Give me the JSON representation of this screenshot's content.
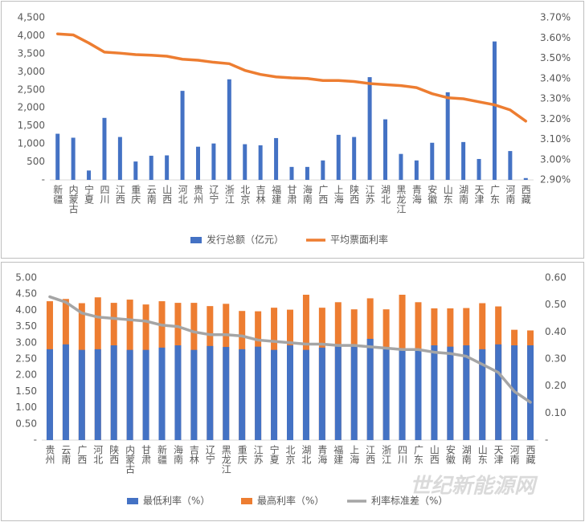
{
  "chart_data": [
    {
      "type": "bar",
      "categories": [
        "新疆",
        "内蒙古",
        "宁夏",
        "四川",
        "江西",
        "重庆",
        "云南",
        "山西",
        "河北",
        "贵州",
        "辽宁",
        "浙江",
        "北京",
        "吉林",
        "福建",
        "甘肃",
        "海南",
        "广西",
        "上海",
        "陕西",
        "江苏",
        "湖北",
        "黑龙江",
        "青海",
        "安徽",
        "山东",
        "湖南",
        "天津",
        "广东",
        "河南",
        "西藏"
      ],
      "series": [
        {
          "name": "发行总额（亿元）",
          "type": "bar",
          "color": "#4472c4",
          "values": [
            1280,
            1170,
            260,
            1720,
            1190,
            510,
            670,
            680,
            2470,
            920,
            1010,
            2790,
            990,
            960,
            1160,
            360,
            360,
            540,
            1250,
            1190,
            2850,
            1680,
            720,
            540,
            1030,
            2430,
            1050,
            580,
            3840,
            800,
            50
          ]
        },
        {
          "name": "平均票面利率",
          "type": "line",
          "axis": "y2",
          "color": "#ed7d31",
          "values": [
            3.62,
            3.615,
            3.575,
            3.53,
            3.525,
            3.518,
            3.515,
            3.51,
            3.495,
            3.49,
            3.48,
            3.473,
            3.44,
            3.42,
            3.408,
            3.403,
            3.4,
            3.39,
            3.39,
            3.385,
            3.375,
            3.37,
            3.365,
            3.355,
            3.325,
            3.305,
            3.3,
            3.285,
            3.27,
            3.245,
            3.19
          ]
        }
      ],
      "ylim": [
        0,
        4500
      ],
      "yticks": [
        {
          "value": 0,
          "label": "-"
        },
        500,
        {
          "value": 1000,
          "label": "1,000"
        },
        {
          "value": 1500,
          "label": "1,500"
        },
        {
          "value": 2000,
          "label": "2,000"
        },
        {
          "value": 2500,
          "label": "2,500"
        },
        {
          "value": 3000,
          "label": "3,000"
        },
        {
          "value": 3500,
          "label": "3,500"
        },
        {
          "value": 4000,
          "label": "4,000"
        },
        {
          "value": 4500,
          "label": "4,500"
        }
      ],
      "y2lim": [
        2.9,
        3.7
      ],
      "y2ticks": [
        {
          "value": 2.9,
          "label": "2.90%"
        },
        {
          "value": 3.0,
          "label": "3.00%"
        },
        {
          "value": 3.1,
          "label": "3.10%"
        },
        {
          "value": 3.2,
          "label": "3.20%"
        },
        {
          "value": 3.3,
          "label": "3.30%"
        },
        {
          "value": 3.4,
          "label": "3.40%"
        },
        {
          "value": 3.5,
          "label": "3.50%"
        },
        {
          "value": 3.6,
          "label": "3.60%"
        },
        {
          "value": 3.7,
          "label": "3.70%"
        }
      ],
      "grid": false,
      "legend": "bottom",
      "bar_mode": "group"
    },
    {
      "type": "bar",
      "categories": [
        "贵州",
        "云南",
        "广西",
        "河北",
        "陕西",
        "内蒙古",
        "甘肃",
        "新疆",
        "海南",
        "吉林",
        "辽宁",
        "黑龙江",
        "重庆",
        "江苏",
        "宁夏",
        "北京",
        "湖北",
        "青海",
        "福建",
        "上海",
        "江西",
        "浙江",
        "四川",
        "广东",
        "山西",
        "安徽",
        "湖南",
        "山东",
        "天津",
        "河南",
        "西藏"
      ],
      "series": [
        {
          "name": "最低利率（%）",
          "type": "bar",
          "color": "#4472c4",
          "values": [
            2.8,
            2.95,
            2.78,
            2.8,
            2.92,
            2.78,
            2.78,
            2.85,
            2.92,
            2.78,
            2.9,
            2.87,
            2.8,
            2.88,
            2.78,
            2.92,
            2.78,
            2.85,
            2.88,
            2.88,
            3.12,
            2.85,
            2.78,
            2.8,
            2.92,
            2.88,
            2.92,
            2.8,
            2.95,
            2.92,
            2.92
          ]
        },
        {
          "name": "最高利率（%）",
          "type": "bar",
          "color": "#ed7d31",
          "values": [
            4.28,
            4.35,
            4.22,
            4.4,
            4.23,
            4.33,
            4.18,
            4.28,
            4.23,
            4.23,
            4.13,
            4.2,
            3.98,
            3.97,
            4.08,
            4.02,
            4.48,
            4.08,
            4.25,
            4.03,
            4.37,
            4.03,
            4.48,
            4.25,
            4.06,
            4.06,
            4.07,
            4.22,
            4.12,
            3.4,
            3.38
          ]
        },
        {
          "name": "利率标准差（%）",
          "type": "line",
          "axis": "y2",
          "color": "#a5a5a5",
          "values": [
            0.53,
            0.51,
            0.47,
            0.455,
            0.45,
            0.445,
            0.44,
            0.425,
            0.42,
            0.4,
            0.39,
            0.39,
            0.385,
            0.37,
            0.365,
            0.36,
            0.355,
            0.355,
            0.35,
            0.35,
            0.345,
            0.34,
            0.335,
            0.335,
            0.325,
            0.32,
            0.31,
            0.28,
            0.25,
            0.18,
            0.14
          ]
        }
      ],
      "ylim": [
        0,
        5
      ],
      "yticks": [
        {
          "value": 0,
          "label": "-"
        },
        {
          "value": 0.5,
          "label": "0.50"
        },
        {
          "value": 1,
          "label": "1.00"
        },
        {
          "value": 1.5,
          "label": "1.50"
        },
        {
          "value": 2,
          "label": "2.00"
        },
        {
          "value": 2.5,
          "label": "2.50"
        },
        {
          "value": 3,
          "label": "3.00"
        },
        {
          "value": 3.5,
          "label": "3.50"
        },
        {
          "value": 4,
          "label": "4.00"
        },
        {
          "value": 4.5,
          "label": "4.50"
        },
        {
          "value": 5,
          "label": "5.00"
        }
      ],
      "y2lim": [
        0,
        0.6
      ],
      "y2ticks": [
        {
          "value": 0,
          "label": "-"
        },
        {
          "value": 0.1,
          "label": "0.10"
        },
        {
          "value": 0.2,
          "label": "0.20"
        },
        {
          "value": 0.3,
          "label": "0.30"
        },
        {
          "value": 0.4,
          "label": "0.40"
        },
        {
          "value": 0.5,
          "label": "0.50"
        },
        {
          "value": 0.6,
          "label": "0.60"
        }
      ],
      "grid": false,
      "legend": "bottom",
      "bar_mode": "overlay",
      "watermark": "世纪新能源网"
    }
  ]
}
